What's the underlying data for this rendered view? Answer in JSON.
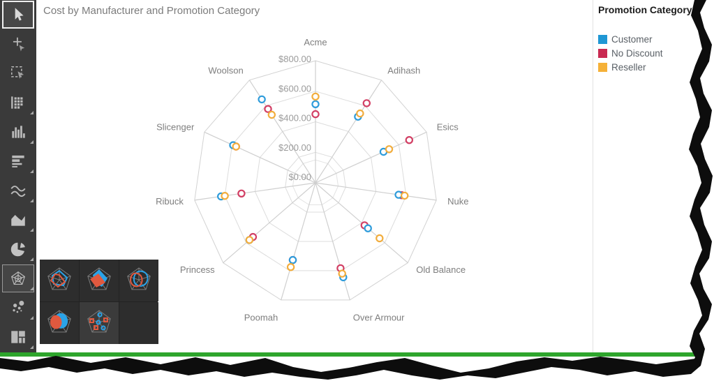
{
  "chart": {
    "title": "Cost by Manufacturer and Promotion Category"
  },
  "legend": {
    "title": "Promotion Category",
    "items": [
      {
        "label": "Customer",
        "color": "#1f97d4"
      },
      {
        "label": "No Discount",
        "color": "#c92a52"
      },
      {
        "label": "Reseller",
        "color": "#f5b138"
      }
    ]
  },
  "toolbar": {
    "tools": [
      {
        "icon": "pointer-icon",
        "selected": true
      },
      {
        "icon": "add-pointer-icon"
      },
      {
        "icon": "marquee-select-icon"
      },
      {
        "icon": "table-chart-icon"
      },
      {
        "icon": "bar-chart-icon"
      },
      {
        "icon": "horizontal-bar-chart-icon"
      },
      {
        "icon": "line-chart-icon"
      },
      {
        "icon": "area-chart-icon"
      },
      {
        "icon": "pie-chart-icon"
      },
      {
        "icon": "radar-chart-icon",
        "active": true
      },
      {
        "icon": "scatter-chart-icon"
      },
      {
        "icon": "treemap-chart-icon"
      }
    ]
  },
  "flyout": {
    "items": [
      "radar-line-icon",
      "radar-area-icon",
      "radar-smooth-line-icon",
      "radar-smooth-area-icon",
      "radar-point-icon"
    ],
    "highlighted": "radar-point-icon"
  },
  "chart_data": {
    "type": "scatter",
    "subtype": "radar-point",
    "title": "Cost by Manufacturer and Promotion Category",
    "categories": [
      "Acme",
      "Adihash",
      "Esics",
      "Nuke",
      "Old Balance",
      "Over Armour",
      "Poomah",
      "Princess",
      "Ribuck",
      "Slicenger",
      "Woolson"
    ],
    "axis": {
      "min": 0,
      "max": 800,
      "step": 200,
      "tick_labels": [
        "$0.00",
        "$200.00",
        "$400.00",
        "$600.00",
        "$800.00"
      ],
      "minor_ring_value": 150
    },
    "series": [
      {
        "name": "Customer",
        "color": "#2f9cdb",
        "values": [
          515,
          515,
          490,
          550,
          455,
          645,
          527,
          572,
          625,
          593,
          650
        ]
      },
      {
        "name": "No Discount",
        "color": "#d23f64",
        "values": [
          450,
          620,
          675,
          570,
          425,
          583,
          527,
          542,
          490,
          572,
          575
        ]
      },
      {
        "name": "Reseller",
        "color": "#f2ad3d",
        "values": [
          565,
          540,
          530,
          590,
          555,
          620,
          575,
          572,
          600,
          572,
          530
        ]
      }
    ],
    "draw_order": [
      1,
      0,
      2
    ],
    "legend_position": "right",
    "grid": true,
    "marker": "hollow-circle"
  }
}
